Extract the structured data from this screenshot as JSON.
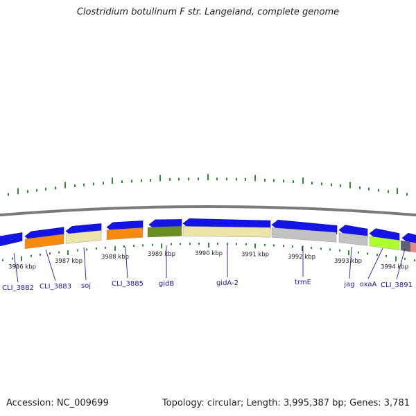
{
  "title": "Clostridium botulinum F str. Langeland, complete genome",
  "footer": {
    "accession": "Accession: NC_009699",
    "topology": "Topology: circular; Length: 3,995,387 bp; Genes: 3,781"
  },
  "colors": {
    "backbone": "#7a7a7a",
    "gene_arrow": "#1414e6",
    "tick": "#2e8b2e",
    "label": "#1a1aa6"
  },
  "kbp_labels": [
    "3986 kbp",
    "3987 kbp",
    "3988 kbp",
    "3989 kbp",
    "3990 kbp",
    "3991 kbp",
    "3992 kbp",
    "3993 kbp",
    "3994 kbp"
  ],
  "genes": [
    {
      "name": "CLI_3882",
      "color": ""
    },
    {
      "name": "CLI_3883",
      "color": "#f58a0f"
    },
    {
      "name": "soj",
      "color": "#ece4a8"
    },
    {
      "name": "CLI_3885",
      "color": "#f58a0f"
    },
    {
      "name": "gidB",
      "color": "#6b8e23"
    },
    {
      "name": "gidA-2",
      "color": "#ece4a8"
    },
    {
      "name": "trmE",
      "color": "#c2c2c2"
    },
    {
      "name": "jag",
      "color": "#c2c2c2"
    },
    {
      "name": "oxaA",
      "color": "#adff2f"
    },
    {
      "name": "CLI_3891",
      "color": "#606070"
    }
  ]
}
